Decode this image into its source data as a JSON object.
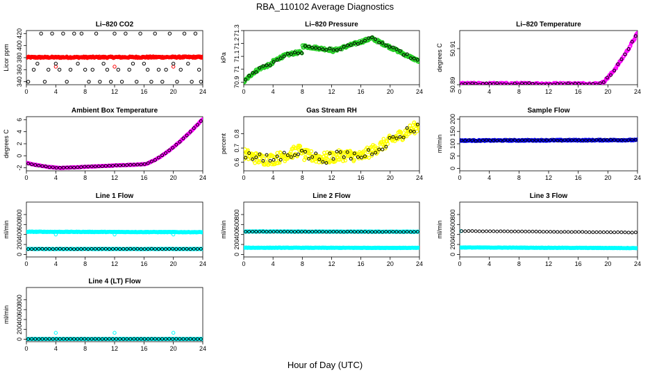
{
  "figure": {
    "title": "RBA_110102  Average Diagnostics",
    "xlabel": "Hour of Day (UTC)"
  },
  "colors": {
    "black": "#000000",
    "red": "#ff0000",
    "green": "#22cc22",
    "magenta": "#ff00ff",
    "yellow": "#ffff00",
    "blue": "#0000ff",
    "cyan": "#00ffff"
  },
  "chart_data": [
    {
      "id": "co2",
      "type": "scatter",
      "title": "Li-820 CO2",
      "ylabel": "Licor ppm",
      "xlim": [
        0,
        24
      ],
      "xticks": [
        0,
        4,
        8,
        12,
        16,
        20,
        24
      ],
      "ylim": [
        335,
        425
      ],
      "yticks": [
        340,
        360,
        380,
        400,
        420
      ],
      "series": [
        {
          "name": "co2-dense",
          "color": "red",
          "style": "dense",
          "fn": "flat",
          "p": [
            380.5,
            0.4
          ],
          "noise": 1.2,
          "n": 250
        },
        {
          "name": "co2-low-red",
          "color": "red",
          "style": "points",
          "x": [
            4,
            12,
            20
          ],
          "y": [
            365,
            365,
            365
          ]
        },
        {
          "name": "co2-scatter",
          "color": "black",
          "style": "points",
          "x": [
            0.25,
            1,
            1.5,
            2,
            2.5,
            3,
            3.5,
            4,
            4.5,
            5,
            5.5,
            6,
            6.5,
            7,
            7.5,
            8,
            8.5,
            9,
            9.5,
            10,
            10.5,
            11,
            11.5,
            12,
            12.5,
            13,
            13.5,
            14,
            14.5,
            15,
            15.5,
            16,
            16.5,
            17,
            17.5,
            18,
            18.5,
            19,
            19.5,
            20,
            20.5,
            21,
            21.5,
            22,
            22.5,
            23,
            23.5,
            23.75
          ],
          "y": [
            340,
            360,
            370,
            420,
            340,
            360,
            420,
            370,
            360,
            420,
            340,
            360,
            420,
            370,
            420,
            360,
            340,
            360,
            420,
            340,
            370,
            360,
            340,
            420,
            360,
            340,
            420,
            360,
            370,
            340,
            420,
            370,
            360,
            340,
            420,
            360,
            340,
            360,
            420,
            370,
            340,
            360,
            420,
            370,
            340,
            420,
            360,
            340
          ]
        }
      ]
    },
    {
      "id": "pressure",
      "type": "scatter",
      "title": "Li-820 Pressure",
      "ylabel": "kPa",
      "xlim": [
        0,
        24
      ],
      "xticks": [
        0,
        4,
        8,
        12,
        16,
        20,
        24
      ],
      "ylim": [
        70.88,
        71.3
      ],
      "yticks": [
        70.9,
        71.0,
        71.1,
        71.2,
        71.3
      ],
      "series": [
        {
          "name": "pressure-dense",
          "color": "green",
          "style": "dense",
          "fn": "pressure",
          "noise": 0.012,
          "n": 300
        },
        {
          "name": "pressure-avg",
          "color": "black",
          "style": "hourly",
          "fn": "pressure",
          "noise": 0.01,
          "n": 50
        }
      ]
    },
    {
      "id": "temp",
      "type": "scatter",
      "title": "Li-820 Temperature",
      "ylabel": "degrees C",
      "xlim": [
        0,
        24
      ],
      "xticks": [
        0,
        4,
        8,
        12,
        16,
        20,
        24
      ],
      "ylim": [
        50.89,
        50.92
      ],
      "yticks": [
        50.89,
        50.91
      ],
      "series": [
        {
          "name": "temp-dense",
          "color": "magenta",
          "style": "dense",
          "fn": "licortemp",
          "noise": 0.0006,
          "n": 250
        },
        {
          "name": "temp-avg",
          "color": "black",
          "style": "hourly",
          "fn": "licortemp",
          "noise": 0.0005,
          "n": 50
        }
      ]
    },
    {
      "id": "ambient",
      "type": "scatter",
      "title": "Ambient Box Temperature",
      "ylabel": "degrees C",
      "xlim": [
        0,
        24
      ],
      "xticks": [
        0,
        4,
        8,
        12,
        16,
        20,
        24
      ],
      "ylim": [
        -2.5,
        6.5
      ],
      "yticks": [
        -2,
        0,
        2,
        4,
        6
      ],
      "series": [
        {
          "name": "ambient-dense",
          "color": "magenta",
          "style": "dense",
          "fn": "ambient",
          "noise": 0.05,
          "n": 250
        },
        {
          "name": "ambient-avg",
          "color": "black",
          "style": "hourly",
          "fn": "ambient",
          "noise": 0.04,
          "n": 50
        }
      ]
    },
    {
      "id": "rh",
      "type": "scatter",
      "title": "Gas Stream RH",
      "ylabel": "percent",
      "xlim": [
        0,
        24
      ],
      "xticks": [
        0,
        4,
        8,
        12,
        16,
        20,
        24
      ],
      "ylim": [
        0.54,
        0.92
      ],
      "yticks": [
        0.6,
        0.7,
        0.8
      ],
      "series": [
        {
          "name": "rh-dense",
          "color": "yellow",
          "style": "dense",
          "fn": "rh",
          "noise": 0.04,
          "n": 300
        },
        {
          "name": "rh-avg",
          "color": "black",
          "style": "hourly",
          "fn": "rh",
          "noise": 0.035,
          "n": 50
        }
      ]
    },
    {
      "id": "sample",
      "type": "scatter",
      "title": "Sample Flow",
      "ylabel": "ml/min",
      "xlim": [
        0,
        24
      ],
      "xticks": [
        0,
        4,
        8,
        12,
        16,
        20,
        24
      ],
      "ylim": [
        -10,
        210
      ],
      "yticks": [
        0,
        50,
        100,
        150,
        200
      ],
      "series": [
        {
          "name": "sample-dense",
          "color": "blue",
          "style": "dense",
          "fn": "flat",
          "p": [
            113,
            2
          ],
          "noise": 2,
          "n": 250
        },
        {
          "name": "sample-avg",
          "color": "black",
          "style": "hourly",
          "fn": "flat",
          "p": [
            113,
            2
          ],
          "noise": 1.5,
          "n": 50
        }
      ]
    },
    {
      "id": "line1",
      "type": "scatter",
      "title": "Line 1 Flow",
      "ylabel": "ml/min",
      "xlim": [
        0,
        24
      ],
      "xticks": [
        0,
        4,
        8,
        12,
        16,
        20,
        24
      ],
      "ylim": [
        -50,
        1050
      ],
      "yticks": [
        0,
        200,
        400,
        600,
        800
      ],
      "series": [
        {
          "name": "line1-high",
          "color": "cyan",
          "style": "dense",
          "fn": "flat",
          "p": [
            455,
            -8
          ],
          "noise": 5,
          "n": 250
        },
        {
          "name": "line1-low",
          "color": "cyan",
          "style": "dense",
          "fn": "flat",
          "p": [
            110,
            0
          ],
          "noise": 4,
          "n": 250
        },
        {
          "name": "line1-high-pts",
          "color": "cyan",
          "style": "points",
          "x": [
            4,
            12,
            20
          ],
          "y": [
            400,
            400,
            400
          ]
        },
        {
          "name": "line1-avg",
          "color": "black",
          "style": "hourly",
          "fn": "flat",
          "p": [
            110,
            0
          ],
          "noise": 3,
          "n": 50
        }
      ]
    },
    {
      "id": "line2",
      "type": "scatter",
      "title": "Line 2 Flow",
      "ylabel": "ml/min",
      "xlim": [
        0,
        24
      ],
      "xticks": [
        0,
        4,
        8,
        12,
        16,
        20,
        24
      ],
      "ylim": [
        -50,
        1050
      ],
      "yticks": [
        0,
        200,
        400,
        600,
        800
      ],
      "series": [
        {
          "name": "line2-high",
          "color": "cyan",
          "style": "dense",
          "fn": "flat",
          "p": [
            460,
            -5
          ],
          "noise": 5,
          "n": 250
        },
        {
          "name": "line2-low",
          "color": "cyan",
          "style": "dense",
          "fn": "flat",
          "p": [
            135,
            -3
          ],
          "noise": 4,
          "n": 250
        },
        {
          "name": "line2-avg",
          "color": "black",
          "style": "hourly",
          "fn": "flat",
          "p": [
            458,
            -5
          ],
          "noise": 3,
          "n": 50
        }
      ]
    },
    {
      "id": "line3",
      "type": "scatter",
      "title": "Line 3 Flow",
      "ylabel": "ml/min",
      "xlim": [
        0,
        24
      ],
      "xticks": [
        0,
        4,
        8,
        12,
        16,
        20,
        24
      ],
      "ylim": [
        -50,
        1050
      ],
      "yticks": [
        0,
        200,
        400,
        600,
        800
      ],
      "series": [
        {
          "name": "line3-low",
          "color": "cyan",
          "style": "dense",
          "fn": "flat",
          "p": [
            140,
            -12
          ],
          "noise": 4,
          "n": 250
        },
        {
          "name": "line3-high-pts",
          "color": "cyan",
          "style": "points",
          "x": [
            0.2
          ],
          "y": [
            470
          ]
        },
        {
          "name": "line3-avg",
          "color": "black",
          "style": "hourly",
          "fn": "flat",
          "p": [
            470,
            -30
          ],
          "noise": 3,
          "n": 50
        }
      ]
    },
    {
      "id": "line4",
      "type": "scatter",
      "title": "Line 4 (LT) Flow",
      "ylabel": "ml/min",
      "xlim": [
        0,
        24
      ],
      "xticks": [
        0,
        4,
        8,
        12,
        16,
        20,
        24
      ],
      "ylim": [
        -50,
        1050
      ],
      "yticks": [
        0,
        200,
        400,
        600,
        800
      ],
      "series": [
        {
          "name": "line4-dense",
          "color": "cyan",
          "style": "dense",
          "fn": "flat",
          "p": [
            5,
            0
          ],
          "noise": 2,
          "n": 250
        },
        {
          "name": "line4-spikes",
          "color": "cyan",
          "style": "points",
          "x": [
            4,
            12,
            20
          ],
          "y": [
            130,
            130,
            130
          ]
        },
        {
          "name": "line4-avg",
          "color": "black",
          "style": "hourly",
          "fn": "flat",
          "p": [
            5,
            0
          ],
          "noise": 1.5,
          "n": 50
        }
      ]
    }
  ]
}
